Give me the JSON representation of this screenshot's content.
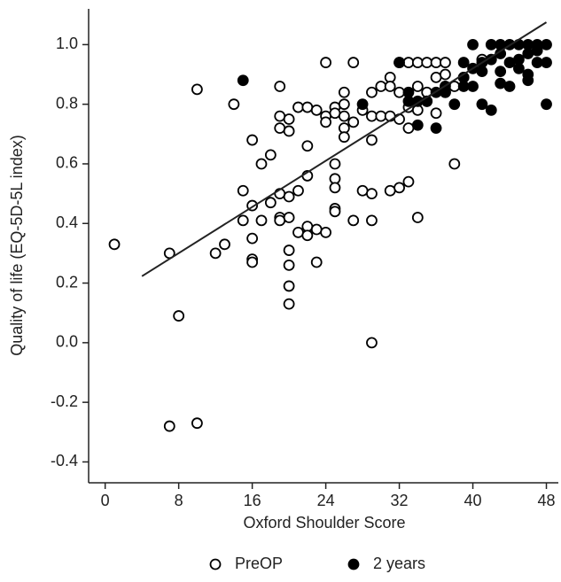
{
  "chart_data": {
    "type": "scatter",
    "x_label": "Oxford Shoulder Score",
    "y_label": "Quality of life (EQ-5D-5L index)",
    "xlim": [
      -1.8,
      49.3
    ],
    "ylim": [
      -0.47,
      1.12
    ],
    "xticks": [
      0,
      8,
      16,
      24,
      32,
      40,
      48
    ],
    "yticks": [
      -0.4,
      -0.2,
      {
        "value": 0,
        "label": "0.0"
      },
      0.2,
      0.4,
      0.6,
      0.8,
      {
        "value": 1,
        "label": "1.0"
      }
    ],
    "legend": "bottom",
    "series": [
      {
        "name": "PreOP",
        "color": "#000000",
        "marker": "open",
        "x": [
          1,
          7,
          8,
          7,
          10,
          10,
          12,
          13,
          14,
          15,
          15,
          16,
          16,
          16,
          16,
          16,
          17,
          17,
          18,
          18,
          19,
          19,
          19,
          19,
          19,
          19,
          20,
          20,
          20,
          20,
          20,
          20,
          20,
          20,
          21,
          21,
          21,
          22,
          22,
          22,
          22,
          22,
          23,
          23,
          23,
          24,
          24,
          24,
          24,
          25,
          25,
          25,
          25,
          25,
          25,
          25,
          26,
          26,
          26,
          26,
          26,
          27,
          27,
          27,
          28,
          28,
          29,
          29,
          29,
          29,
          29,
          29,
          30,
          30,
          31,
          31,
          31,
          31,
          32,
          32,
          32,
          32,
          33,
          33,
          33,
          33,
          34,
          34,
          34,
          34,
          35,
          35,
          35,
          36,
          36,
          36,
          37,
          37,
          37,
          37,
          38,
          38,
          39,
          41
        ],
        "y": [
          0.33,
          0.3,
          0.09,
          -0.28,
          -0.27,
          0.85,
          0.3,
          0.33,
          0.8,
          0.51,
          0.41,
          0.68,
          0.46,
          0.35,
          0.28,
          0.27,
          0.41,
          0.6,
          0.63,
          0.47,
          0.86,
          0.76,
          0.72,
          0.5,
          0.42,
          0.41,
          0.75,
          0.71,
          0.49,
          0.42,
          0.31,
          0.26,
          0.19,
          0.13,
          0.79,
          0.51,
          0.37,
          0.79,
          0.66,
          0.56,
          0.39,
          0.36,
          0.78,
          0.38,
          0.27,
          0.94,
          0.76,
          0.74,
          0.37,
          0.79,
          0.77,
          0.6,
          0.55,
          0.52,
          0.45,
          0.44,
          0.84,
          0.8,
          0.76,
          0.72,
          0.69,
          0.94,
          0.74,
          0.41,
          0.78,
          0.51,
          0.84,
          0.76,
          0.68,
          0.5,
          0.41,
          0.0,
          0.86,
          0.76,
          0.89,
          0.86,
          0.76,
          0.51,
          0.94,
          0.84,
          0.75,
          0.52,
          0.94,
          0.79,
          0.72,
          0.54,
          0.94,
          0.86,
          0.78,
          0.42,
          0.94,
          0.84,
          0.81,
          0.94,
          0.89,
          0.77,
          0.94,
          0.9,
          0.86,
          0.84,
          0.86,
          0.6,
          0.89,
          0.95
        ]
      },
      {
        "name": "2 years",
        "color": "#000000",
        "marker": "filled",
        "x": [
          15,
          28,
          32,
          33,
          33,
          34,
          34,
          35,
          36,
          36,
          37,
          37,
          38,
          39,
          39,
          39,
          40,
          40,
          40,
          41,
          41,
          41,
          42,
          42,
          42,
          43,
          43,
          43,
          43,
          44,
          44,
          44,
          45,
          45,
          45,
          46,
          46,
          46,
          46,
          47,
          47,
          47,
          48,
          48,
          48
        ],
        "y": [
          0.88,
          0.8,
          0.94,
          0.84,
          0.81,
          0.81,
          0.73,
          0.81,
          0.84,
          0.72,
          0.86,
          0.84,
          0.8,
          0.94,
          0.89,
          0.86,
          1.0,
          0.92,
          0.86,
          0.94,
          0.91,
          0.8,
          1.0,
          0.95,
          0.78,
          1.0,
          0.97,
          0.91,
          0.87,
          1.0,
          0.94,
          0.86,
          1.0,
          0.95,
          0.92,
          1.0,
          0.97,
          0.9,
          0.88,
          1.0,
          0.94,
          0.98,
          1.0,
          0.94,
          0.8
        ]
      }
    ],
    "trend_line": {
      "x": [
        4,
        48
      ],
      "y": [
        0.223,
        1.075
      ]
    }
  }
}
